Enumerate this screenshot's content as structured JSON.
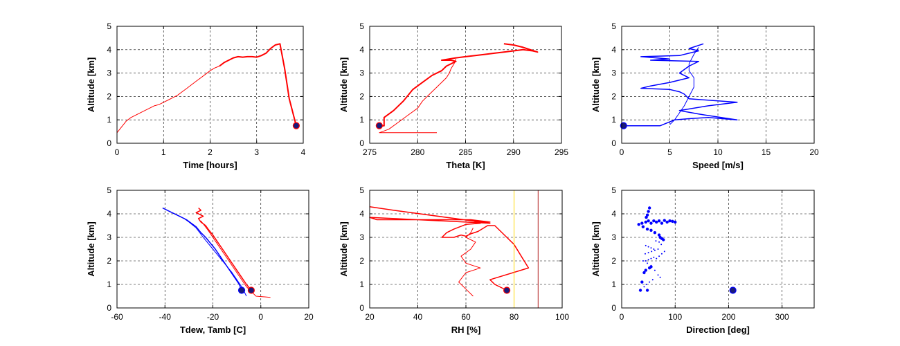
{
  "chart_data": [
    {
      "type": "line",
      "xlabel": "Time [hours]",
      "ylabel": "Altitude [km]",
      "xlim": [
        0,
        4
      ],
      "ylim": [
        0,
        5
      ],
      "xticks": [
        0,
        1,
        2,
        3,
        4
      ],
      "yticks": [
        0,
        1,
        2,
        3,
        4,
        5
      ],
      "grid": true,
      "series": [
        {
          "color": "#ff0000",
          "width": 1,
          "x": [
            0,
            0.1,
            0.2,
            0.3,
            0.4,
            0.5,
            0.6,
            0.7,
            0.8,
            0.9,
            1.0,
            1.1,
            1.2,
            1.3,
            1.4,
            1.5,
            1.6,
            1.7,
            1.8,
            1.9,
            2.0,
            2.1,
            2.2
          ],
          "y": [
            0.45,
            0.7,
            0.95,
            1.1,
            1.2,
            1.3,
            1.4,
            1.5,
            1.6,
            1.65,
            1.75,
            1.85,
            1.95,
            2.05,
            2.2,
            2.35,
            2.5,
            2.65,
            2.8,
            2.95,
            3.1,
            3.22,
            3.3
          ]
        },
        {
          "color": "#ff0000",
          "width": 2,
          "x": [
            2.2,
            2.3,
            2.4,
            2.5,
            2.6,
            2.7,
            2.8,
            2.9,
            3.0,
            3.1,
            3.2,
            3.3,
            3.4,
            3.5,
            3.6,
            3.7,
            3.85
          ],
          "y": [
            3.3,
            3.45,
            3.55,
            3.65,
            3.7,
            3.68,
            3.7,
            3.7,
            3.68,
            3.75,
            3.85,
            4.05,
            4.2,
            4.25,
            3.2,
            1.9,
            0.75
          ]
        }
      ],
      "markers": [
        {
          "x": 3.85,
          "y": 0.75,
          "color": "#ff0000"
        }
      ]
    },
    {
      "type": "line",
      "xlabel": "Theta [K]",
      "ylabel": "Altitude [km]",
      "xlim": [
        275,
        295
      ],
      "ylim": [
        0,
        5
      ],
      "xticks": [
        275,
        280,
        285,
        290,
        295
      ],
      "yticks": [
        0,
        1,
        2,
        3,
        4,
        5
      ],
      "grid": true,
      "series": [
        {
          "color": "#ff0000",
          "width": 1,
          "x": [
            282,
            276,
            277,
            278,
            279,
            280,
            280.5,
            281,
            281.5,
            282,
            282.5,
            283,
            283.3,
            283.5,
            283.8,
            284
          ],
          "y": [
            0.45,
            0.45,
            0.6,
            0.9,
            1.2,
            1.5,
            1.8,
            2.0,
            2.2,
            2.4,
            2.6,
            2.8,
            3.0,
            3.2,
            3.4,
            3.6
          ]
        },
        {
          "color": "#ff0000",
          "width": 2,
          "x": [
            276,
            276.5,
            276.5,
            277.5,
            278.5,
            279.5,
            280.5,
            281.5,
            282.5,
            283,
            283.5,
            284,
            283.5,
            282.5,
            284,
            285,
            286,
            287,
            288,
            289,
            290,
            291,
            292,
            292.5,
            291,
            290,
            289
          ],
          "y": [
            0.75,
            0.75,
            1.1,
            1.4,
            1.8,
            2.3,
            2.6,
            2.9,
            3.1,
            3.3,
            3.4,
            3.5,
            3.55,
            3.55,
            3.65,
            3.7,
            3.75,
            3.8,
            3.85,
            3.9,
            3.95,
            4.0,
            3.95,
            3.9,
            4.1,
            4.2,
            4.25
          ]
        }
      ],
      "markers": [
        {
          "x": 276,
          "y": 0.75,
          "color": "#ff0000"
        }
      ]
    },
    {
      "type": "line",
      "xlabel": "Speed [m/s]",
      "ylabel": "Altitude [km]",
      "xlim": [
        0,
        20
      ],
      "ylim": [
        0,
        5
      ],
      "xticks": [
        0,
        5,
        10,
        15,
        20
      ],
      "yticks": [
        0,
        1,
        2,
        3,
        4,
        5
      ],
      "grid": true,
      "series": [
        {
          "color": "#0000ff",
          "width": 1.5,
          "x": [
            0.2,
            4,
            5.5,
            7,
            9,
            12,
            8,
            6,
            9,
            12,
            7,
            6.5,
            6,
            5,
            2,
            3,
            5,
            7,
            6,
            6.5,
            7,
            8,
            3,
            5,
            2,
            6,
            7,
            8,
            7,
            8.5
          ],
          "y": [
            0.75,
            0.75,
            1.0,
            1.05,
            1.1,
            1.0,
            1.25,
            1.4,
            1.6,
            1.75,
            1.9,
            2.1,
            2.2,
            2.3,
            2.35,
            2.45,
            2.6,
            2.8,
            3.0,
            3.15,
            3.3,
            3.5,
            3.55,
            3.6,
            3.7,
            3.75,
            3.85,
            3.95,
            4.05,
            4.25
          ]
        },
        {
          "color": "#0000ff",
          "width": 1,
          "x": [
            5,
            5.5,
            6,
            6.5,
            7,
            7.5,
            7.5,
            7,
            7,
            7.5,
            8
          ],
          "y": [
            0.8,
            1.0,
            1.3,
            1.6,
            2.0,
            2.4,
            2.8,
            3.1,
            3.4,
            3.8,
            4.1
          ]
        }
      ],
      "markers": [
        {
          "x": 0.2,
          "y": 0.75,
          "color": "#0000ff"
        }
      ]
    },
    {
      "type": "line",
      "xlabel": "Tdew, Tamb [C]",
      "ylabel": "Altitude [km]",
      "xlim": [
        -60,
        20
      ],
      "ylim": [
        0,
        5
      ],
      "xticks": [
        -60,
        -40,
        -20,
        0,
        20
      ],
      "yticks": [
        0,
        1,
        2,
        3,
        4,
        5
      ],
      "grid": true,
      "series": [
        {
          "color": "#0000ff",
          "width": 1.5,
          "x": [
            -8,
            -9,
            -11,
            -13,
            -15,
            -17,
            -19,
            -21,
            -23,
            -25,
            -27,
            -29,
            -31,
            -33,
            -35,
            -37,
            -39,
            -41
          ],
          "y": [
            0.75,
            1.0,
            1.3,
            1.6,
            1.9,
            2.2,
            2.5,
            2.75,
            3.0,
            3.2,
            3.45,
            3.6,
            3.75,
            3.85,
            3.95,
            4.05,
            4.15,
            4.25
          ]
        },
        {
          "color": "#0000ff",
          "width": 1,
          "x": [
            -6,
            -8,
            -12,
            -16,
            -20,
            -24,
            -27,
            -30,
            -32,
            -34,
            -36
          ],
          "y": [
            0.5,
            0.9,
            1.5,
            2.0,
            2.5,
            3.0,
            3.4,
            3.65,
            3.8,
            3.9,
            4.0
          ]
        },
        {
          "color": "#ff0000",
          "width": 1.5,
          "x": [
            -4,
            -6,
            -8,
            -10,
            -12,
            -14,
            -16,
            -18,
            -20,
            -22,
            -23,
            -25,
            -26,
            -24,
            -27,
            -25,
            -26
          ],
          "y": [
            0.75,
            1.0,
            1.3,
            1.6,
            1.9,
            2.2,
            2.5,
            2.8,
            3.1,
            3.35,
            3.5,
            3.65,
            3.8,
            3.9,
            4.05,
            4.15,
            4.25
          ]
        },
        {
          "color": "#ff0000",
          "width": 1,
          "x": [
            4,
            -2,
            -6,
            -10,
            -14,
            -18,
            -22,
            -25
          ],
          "y": [
            0.45,
            0.5,
            0.9,
            1.5,
            2.1,
            2.7,
            3.3,
            3.7
          ]
        }
      ],
      "markers": [
        {
          "x": -8,
          "y": 0.75,
          "color": "#0000ff"
        },
        {
          "x": -4,
          "y": 0.75,
          "color": "#ff0000"
        }
      ]
    },
    {
      "type": "line",
      "xlabel": "RH [%]",
      "ylabel": "Altitude [km]",
      "xlim": [
        20,
        100
      ],
      "ylim": [
        0,
        5
      ],
      "xticks": [
        20,
        40,
        60,
        80,
        100
      ],
      "yticks": [
        0,
        1,
        2,
        3,
        4,
        5
      ],
      "grid": true,
      "series": [
        {
          "color": "#ff0000",
          "width": 1.5,
          "x": [
            77,
            72,
            70,
            86,
            83,
            80,
            76,
            72,
            69,
            65,
            62,
            60,
            58,
            55,
            50,
            52,
            55,
            60,
            66,
            63,
            70,
            62,
            23,
            20,
            70,
            30,
            20
          ],
          "y": [
            0.75,
            1.0,
            1.2,
            1.7,
            2.2,
            2.7,
            3.1,
            3.5,
            3.5,
            3.25,
            3.15,
            3.05,
            3.1,
            3.0,
            3.0,
            3.2,
            3.35,
            3.55,
            3.6,
            3.7,
            3.65,
            3.75,
            3.75,
            3.85,
            3.6,
            4.15,
            4.3
          ]
        },
        {
          "color": "#ff0000",
          "width": 1,
          "x": [
            63,
            60,
            57,
            60,
            66,
            60,
            58,
            62,
            64,
            60,
            62,
            63
          ],
          "y": [
            0.5,
            0.8,
            1.1,
            1.5,
            1.7,
            1.9,
            2.2,
            2.5,
            2.8,
            3.0,
            3.2,
            3.4
          ]
        },
        {
          "color": "#ffd700",
          "width": 1,
          "x": [
            80,
            80
          ],
          "y": [
            0,
            5
          ]
        },
        {
          "color": "#b22222",
          "width": 1,
          "x": [
            90,
            90
          ],
          "y": [
            0,
            5
          ]
        }
      ],
      "markers": [
        {
          "x": 77,
          "y": 0.75,
          "color": "#ff0000"
        }
      ]
    },
    {
      "type": "scatter",
      "xlabel": "Direction [deg]",
      "ylabel": "Altitude [km]",
      "xlim": [
        0,
        360
      ],
      "ylim": [
        0,
        5
      ],
      "xticks": [
        0,
        100,
        200,
        300
      ],
      "yticks": [
        0,
        1,
        2,
        3,
        4,
        5
      ],
      "grid": true,
      "series": [
        {
          "color": "#0000ff",
          "r": 2.2,
          "x": [
            32,
            38,
            45,
            50,
            55,
            60,
            65,
            70,
            75,
            80,
            85,
            90,
            95,
            100,
            40,
            48,
            55,
            62,
            70,
            72,
            75,
            78,
            52,
            50,
            48,
            46,
            55,
            38,
            35,
            48,
            52,
            45,
            42
          ],
          "y": [
            3.55,
            3.6,
            3.65,
            3.7,
            3.6,
            3.7,
            3.65,
            3.7,
            3.6,
            3.72,
            3.65,
            3.7,
            3.68,
            3.65,
            3.45,
            3.35,
            3.3,
            3.2,
            3.1,
            3.0,
            2.95,
            2.9,
            4.25,
            4.1,
            3.95,
            3.85,
            1.75,
            1.1,
            0.75,
            0.75,
            1.7,
            1.6,
            1.5
          ]
        },
        {
          "color": "#0000ff",
          "r": 1.0,
          "x": [
            45,
            50,
            55,
            60,
            65,
            70,
            75,
            80,
            60,
            55,
            50,
            45,
            40,
            48,
            55,
            62,
            68,
            72,
            58,
            52,
            46,
            42,
            44,
            50,
            56,
            62,
            68,
            74,
            70,
            64
          ],
          "y": [
            2.0,
            2.05,
            2.1,
            2.15,
            2.1,
            2.2,
            2.3,
            2.4,
            2.5,
            2.55,
            2.6,
            2.65,
            2.0,
            1.9,
            1.8,
            1.6,
            1.4,
            1.3,
            1.2,
            1.1,
            1.0,
            0.9,
            2.3,
            2.35,
            2.4,
            2.45,
            2.5,
            2.7,
            2.8,
            2.85
          ]
        }
      ],
      "markers": [
        {
          "x": 208,
          "y": 0.75,
          "color": "#0000ff"
        }
      ]
    }
  ]
}
